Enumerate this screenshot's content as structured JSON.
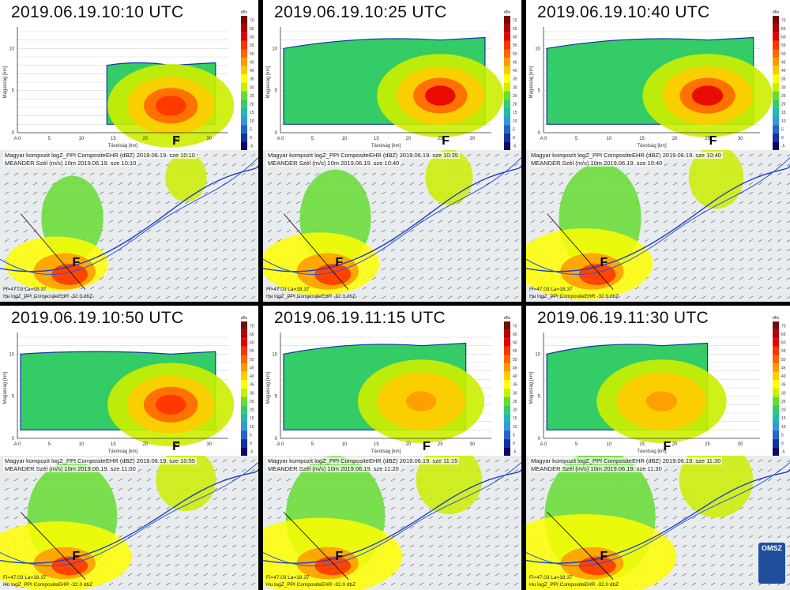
{
  "panels": [
    {
      "time_label": "2019.06.19.10:10 UTC",
      "map_line1": "Magyar kompozit logZ_PPI CompositeEHR (dBZ) 2019.06.19. sze 10:10",
      "map_line2": "MEANDER Szél (m/s) 10m 2019.06.19. sze 10:10",
      "foot": "Hu logZ_PPI CompositeEHR -32.0 dbZ",
      "coords": "Fi=47.03 La=18.37"
    },
    {
      "time_label": "2019.06.19.10:25 UTC",
      "map_line1": "Magyar kompozit logZ_PPI CompositeEHR (dBZ) 2019.06.19. sze 10:35",
      "map_line2": "MEANDER Szél (m/s) 10m 2019.06.19. sze 10:40",
      "foot": "Hu logZ_PPI CompositeEHR -32.0 dbZ",
      "coords": "Fi=47.03 La=18.37"
    },
    {
      "time_label": "2019.06.19.10:40 UTC",
      "map_line1": "Magyar kompozit logZ_PPI CompositeEHR (dBZ) 2019.06.19. sze 10:40",
      "map_line2": "MEANDER Szél (m/s) 10m 2019.06.19. sze 10:40",
      "foot": "Hu logZ_PPI CompositeEHR -32.0 dbZ",
      "coords": "Fi=47.03 La=18.37"
    },
    {
      "time_label": "2019.06.19.10:50 UTC",
      "map_line1": "Magyar kompozit logZ_PPI CompositeEHR (dBZ) 2019.06.19. sze 10:55",
      "map_line2": "MEANDER Szél (m/s) 10m 2019.06.19. sze 11:00",
      "foot": "Hu logZ_PPI CompositeEHR -32.0 dbZ",
      "coords": "Fi=47.03 La=18.37"
    },
    {
      "time_label": "2019.06.19.11:15 UTC",
      "map_line1": "Magyar kompozit logZ_PPI CompositeEHR (dBZ) 2019.06.19. sze 11:15",
      "map_line2": "MEANDER Szél (m/s) 10m 2019.06.19. sze 11:20",
      "foot": "Hu logZ_PPI CompositeEHR -32.0 dbZ",
      "coords": "Fi=47.03 La=18.37"
    },
    {
      "time_label": "2019.06.19.11:30 UTC",
      "map_line1": "Magyar kompozit logZ_PPI CompositeEHR (dBZ) 2019.06.19. sze 11:30",
      "map_line2": "MEANDER Szél (m/s) 10m 2019.06.19. sze 11:30",
      "foot": "Hu logZ_PPI CompositeEHR -32.0 dbZ",
      "coords": "Fi=47.03 La=18.37"
    }
  ],
  "f_marker": "F",
  "logo_text": "OMSZ",
  "chart_data": {
    "type": "heatmap",
    "xlabel": "Távolság [km]",
    "ylabel": "Magasság [km]",
    "colorbar_label": "dBz",
    "xlim": [
      0,
      33
    ],
    "ylim": [
      0,
      12
    ],
    "x_ticks": [
      "A 0",
      "5",
      "10",
      "15",
      "20",
      "25",
      "30"
    ],
    "y_ticks": [
      "0",
      "5",
      "10"
    ],
    "colorbar_ticks": [
      "70",
      "65",
      "60",
      "55",
      "50",
      "45",
      "40",
      "35",
      "30",
      "25",
      "20",
      "15",
      "10",
      "5",
      "0",
      "-5"
    ],
    "colorbar_colors": [
      "#7a0a0a",
      "#b30000",
      "#e60000",
      "#ff3300",
      "#ff6600",
      "#ff9900",
      "#ffcc00",
      "#ffff00",
      "#ccee00",
      "#66dd33",
      "#33cc66",
      "#22bbaa",
      "#3399dd",
      "#2266cc",
      "#1133aa",
      "#0a0a66"
    ],
    "cores": [
      {
        "time": "10:10",
        "x_center_km": 24,
        "top_km": 8,
        "max_dbz": 55
      },
      {
        "time": "10:25",
        "x_center_km": 25,
        "top_km": 11,
        "max_dbz": 60
      },
      {
        "time": "10:40",
        "x_center_km": 25,
        "top_km": 11,
        "max_dbz": 60
      },
      {
        "time": "10:50",
        "x_center_km": 24,
        "top_km": 10,
        "max_dbz": 55
      },
      {
        "time": "11:15",
        "x_center_km": 22,
        "top_km": 11,
        "max_dbz": 45
      },
      {
        "time": "11:30",
        "x_center_km": 18,
        "top_km": 11,
        "max_dbz": 45
      }
    ]
  }
}
